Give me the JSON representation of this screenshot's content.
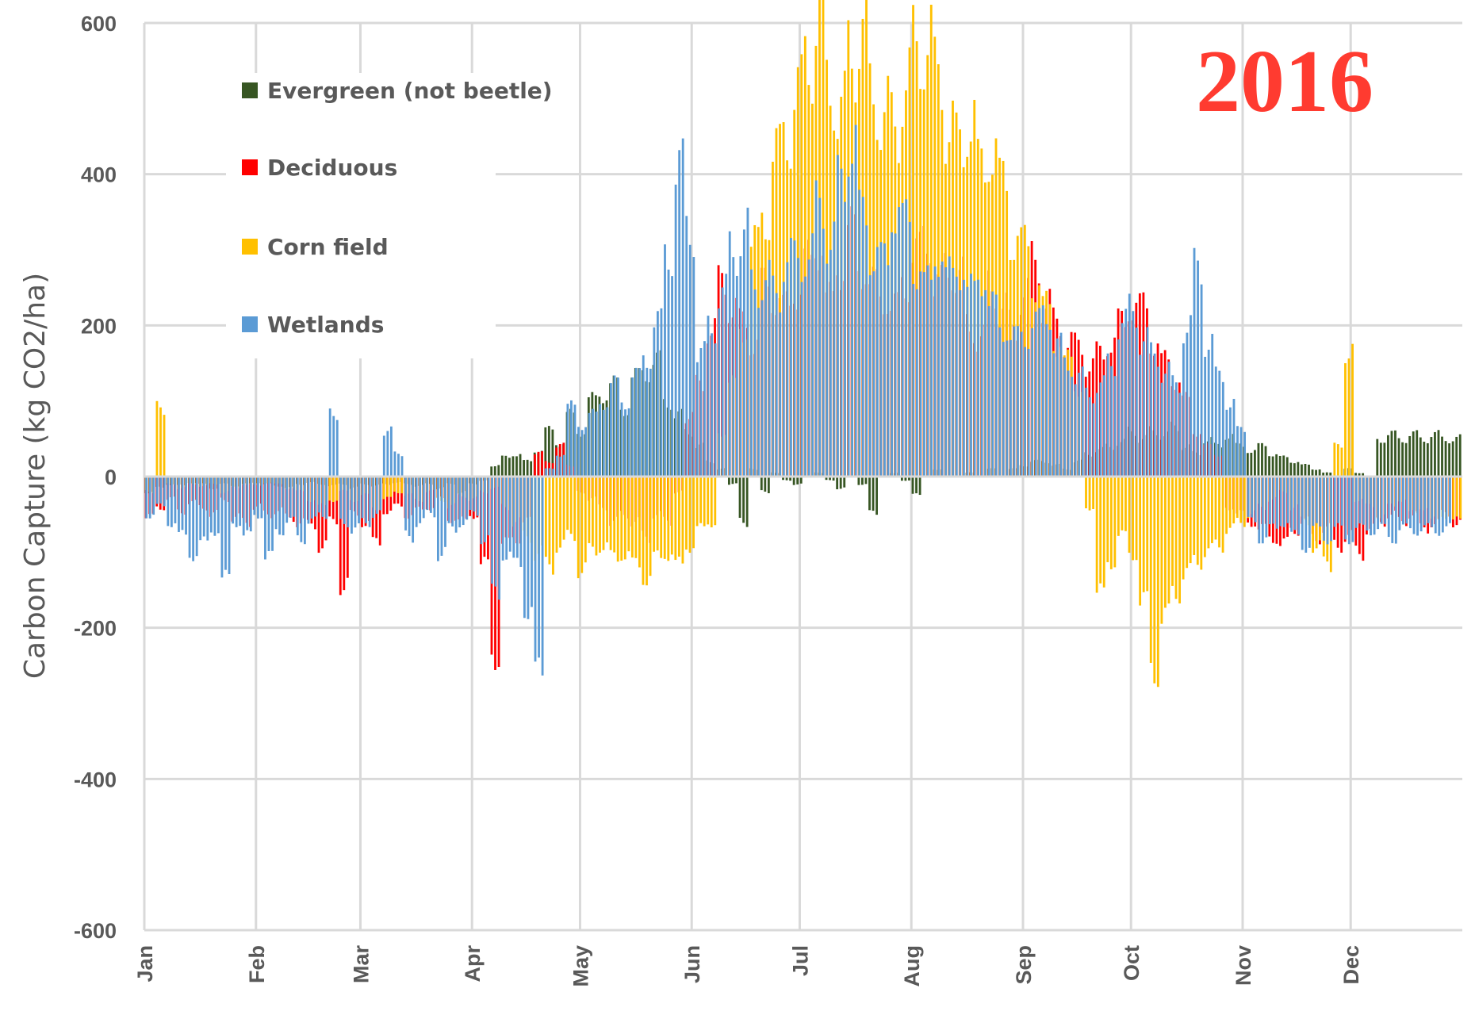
{
  "chart_data": {
    "type": "bar",
    "title": "2016",
    "xlabel": "",
    "ylabel": "Carbon Capture (kg CO2/ha)",
    "ylim": [
      -600,
      600
    ],
    "yticks": [
      600,
      400,
      200,
      0,
      -200,
      -400,
      -600
    ],
    "xlim_days": [
      1,
      366
    ],
    "month_ticks": [
      {
        "label": "Jan",
        "day": 1
      },
      {
        "label": "Feb",
        "day": 32
      },
      {
        "label": "Mar",
        "day": 61
      },
      {
        "label": "Apr",
        "day": 92
      },
      {
        "label": "May",
        "day": 122
      },
      {
        "label": "Jun",
        "day": 153
      },
      {
        "label": "Jul",
        "day": 183
      },
      {
        "label": "Aug",
        "day": 214
      },
      {
        "label": "Sep",
        "day": 245
      },
      {
        "label": "Oct",
        "day": 275
      },
      {
        "label": "Nov",
        "day": 306
      },
      {
        "label": "Dec",
        "day": 336
      }
    ],
    "grid": true,
    "legend_position": "top-left",
    "sample_step_days": 3,
    "series": [
      {
        "name": "Evergreen (not beetle)",
        "color": "#375623",
        "values": [
          -20,
          -15,
          -10,
          -12,
          -8,
          -10,
          -15,
          -10,
          -12,
          -10,
          -8,
          -10,
          -12,
          -15,
          -10,
          -8,
          -10,
          -12,
          -10,
          -15,
          -10,
          -12,
          -10,
          -8,
          -10,
          -12,
          -10,
          -15,
          -10,
          -20,
          -10,
          -5,
          15,
          25,
          30,
          20,
          35,
          60,
          45,
          80,
          60,
          100,
          110,
          120,
          90,
          130,
          140,
          150,
          100,
          80,
          60,
          40,
          20,
          10,
          -10,
          -60,
          10,
          -20,
          5,
          -5,
          -10,
          0,
          5,
          -5,
          -15,
          0,
          -10,
          -50,
          0,
          5,
          -5,
          -25,
          0,
          10,
          0,
          0,
          5,
          0,
          10,
          0,
          10,
          15,
          20,
          20,
          15,
          10,
          20,
          30,
          35,
          40,
          45,
          60,
          50,
          60,
          55,
          65,
          40,
          30,
          50,
          40,
          55,
          40,
          35,
          40,
          30,
          25,
          20,
          15,
          10,
          5,
          0,
          10,
          5,
          0,
          50,
          55,
          50,
          55,
          50,
          55,
          50,
          50
        ]
      },
      {
        "name": "Deciduous",
        "color": "#ff0000",
        "values": [
          -55,
          -40,
          -30,
          -45,
          -35,
          -40,
          -50,
          -30,
          -55,
          -60,
          -40,
          -50,
          -45,
          -55,
          -60,
          -65,
          -90,
          -60,
          -140,
          -50,
          -60,
          -90,
          -45,
          -40,
          -50,
          -45,
          -40,
          -30,
          -55,
          -60,
          -50,
          -120,
          -230,
          -90,
          -80,
          -60,
          30,
          20,
          40,
          15,
          -20,
          -30,
          -40,
          -60,
          -50,
          -60,
          -80,
          -50,
          -60,
          -20,
          80,
          120,
          200,
          250,
          230,
          200,
          180,
          250,
          240,
          220,
          250,
          280,
          310,
          230,
          280,
          320,
          280,
          250,
          240,
          220,
          260,
          290,
          320,
          250,
          280,
          260,
          200,
          180,
          250,
          220,
          200,
          240,
          280,
          230,
          200,
          180,
          170,
          150,
          160,
          180,
          200,
          230,
          220,
          180,
          150,
          130,
          100,
          60,
          40,
          30,
          -40,
          -50,
          -60,
          -70,
          -80,
          -90,
          -70,
          -60,
          -80,
          -70,
          -90,
          -80,
          -100,
          -70,
          -60,
          -50,
          -60,
          -50,
          -70,
          -60,
          -50,
          -60
        ]
      },
      {
        "name": "Corn field",
        "color": "#ffc000",
        "values": [
          -20,
          90,
          -10,
          -15,
          -10,
          -12,
          -10,
          -20,
          -15,
          -10,
          -12,
          -8,
          -10,
          -15,
          -20,
          -30,
          -40,
          -30,
          -20,
          -30,
          -25,
          -40,
          -30,
          -20,
          -25,
          -30,
          -20,
          -30,
          -40,
          -25,
          -30,
          -20,
          -15,
          -40,
          -60,
          -80,
          -100,
          -120,
          -90,
          -80,
          -120,
          -100,
          -90,
          -110,
          -100,
          -120,
          -130,
          -110,
          -100,
          -120,
          -90,
          -70,
          -60,
          60,
          120,
          200,
          300,
          350,
          420,
          460,
          500,
          560,
          600,
          520,
          480,
          560,
          590,
          500,
          480,
          460,
          520,
          560,
          580,
          520,
          470,
          430,
          480,
          400,
          440,
          380,
          320,
          300,
          260,
          220,
          180,
          150,
          120,
          -40,
          -160,
          -110,
          -80,
          -100,
          -170,
          -250,
          -190,
          -150,
          -130,
          -110,
          -100,
          -90,
          -70,
          -60,
          -50,
          -40,
          -30,
          -20,
          -40,
          -60,
          -90,
          -120,
          40,
          170,
          -30,
          -40,
          -50,
          -40,
          -30,
          -50,
          -40,
          -60,
          -50,
          -60
        ]
      },
      {
        "name": "Wetlands",
        "color": "#5b9bd5",
        "values": [
          -50,
          -40,
          -60,
          -80,
          -100,
          -90,
          -70,
          -140,
          -60,
          -80,
          -50,
          -110,
          -70,
          -60,
          -80,
          -60,
          -50,
          85,
          -60,
          -70,
          -60,
          -50,
          60,
          30,
          -80,
          -60,
          -50,
          -100,
          -70,
          -60,
          -50,
          -80,
          -160,
          -100,
          -120,
          -170,
          -270,
          10,
          30,
          90,
          70,
          80,
          100,
          120,
          100,
          130,
          160,
          200,
          300,
          400,
          330,
          160,
          200,
          240,
          300,
          320,
          250,
          260,
          240,
          290,
          280,
          300,
          350,
          320,
          380,
          450,
          340,
          300,
          280,
          360,
          330,
          280,
          250,
          300,
          260,
          280,
          240,
          270,
          220,
          200,
          180,
          190,
          200,
          220,
          170,
          150,
          130,
          110,
          120,
          150,
          200,
          220,
          180,
          160,
          140,
          120,
          200,
          270,
          180,
          130,
          100,
          60,
          -60,
          -80,
          -70,
          -60,
          -80,
          -90,
          -70,
          -80,
          -70,
          -80,
          -70,
          -70,
          -70,
          -80,
          -70,
          -70,
          -70,
          -70,
          -70
        ]
      }
    ]
  },
  "legend": [
    {
      "label": "Evergreen (not beetle)",
      "color": "#375623"
    },
    {
      "label": "Deciduous",
      "color": "#ff0000"
    },
    {
      "label": "Corn field",
      "color": "#ffc000"
    },
    {
      "label": "Wetlands",
      "color": "#5b9bd5"
    }
  ],
  "annotation": {
    "year": "2016",
    "color": "#ff3b30"
  },
  "axis": {
    "ylabel": "Carbon Capture (kg CO2/ha)",
    "grid_color": "#d9d9d9",
    "text_color": "#595959"
  }
}
